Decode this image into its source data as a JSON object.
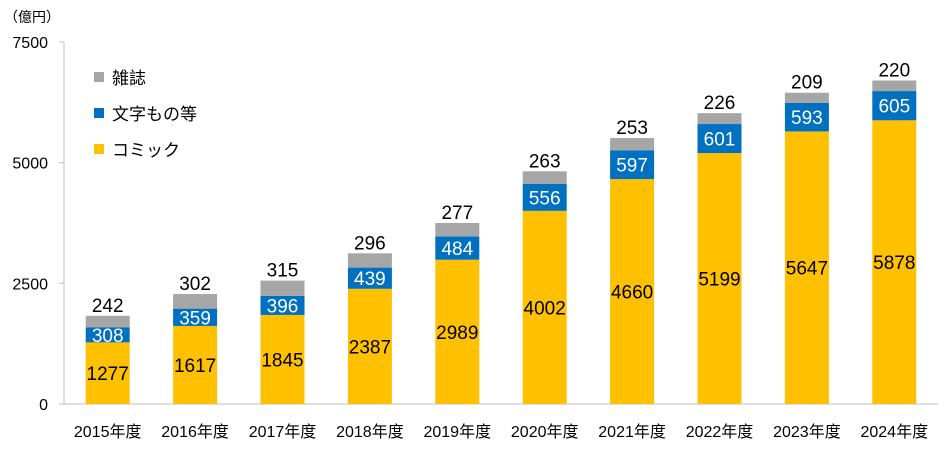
{
  "chart_data": {
    "type": "bar",
    "stacked": true,
    "unit_label": "（億円）",
    "categories": [
      "2015年度",
      "2016年度",
      "2017年度",
      "2018年度",
      "2019年度",
      "2020年度",
      "2021年度",
      "2022年度",
      "2023年度",
      "2024年度"
    ],
    "series": [
      {
        "name": "コミック",
        "color": "#FFC000",
        "label_color": "#000000",
        "values": [
          1277,
          1617,
          1845,
          2387,
          2989,
          4002,
          4660,
          5199,
          5647,
          5878
        ]
      },
      {
        "name": "文字もの等",
        "color": "#0070C0",
        "label_color": "#ffffff",
        "values": [
          308,
          359,
          396,
          439,
          484,
          556,
          597,
          601,
          593,
          605
        ]
      },
      {
        "name": "雑誌",
        "color": "#A6A6A6",
        "label_color": "#000000",
        "values": [
          242,
          302,
          315,
          296,
          277,
          263,
          253,
          226,
          209,
          220
        ]
      }
    ],
    "legend_order": [
      "雑誌",
      "文字もの等",
      "コミック"
    ],
    "legend_position": "top-left",
    "y_ticks": [
      0,
      2500,
      5000,
      7500
    ],
    "ylim": [
      0,
      7500
    ]
  }
}
